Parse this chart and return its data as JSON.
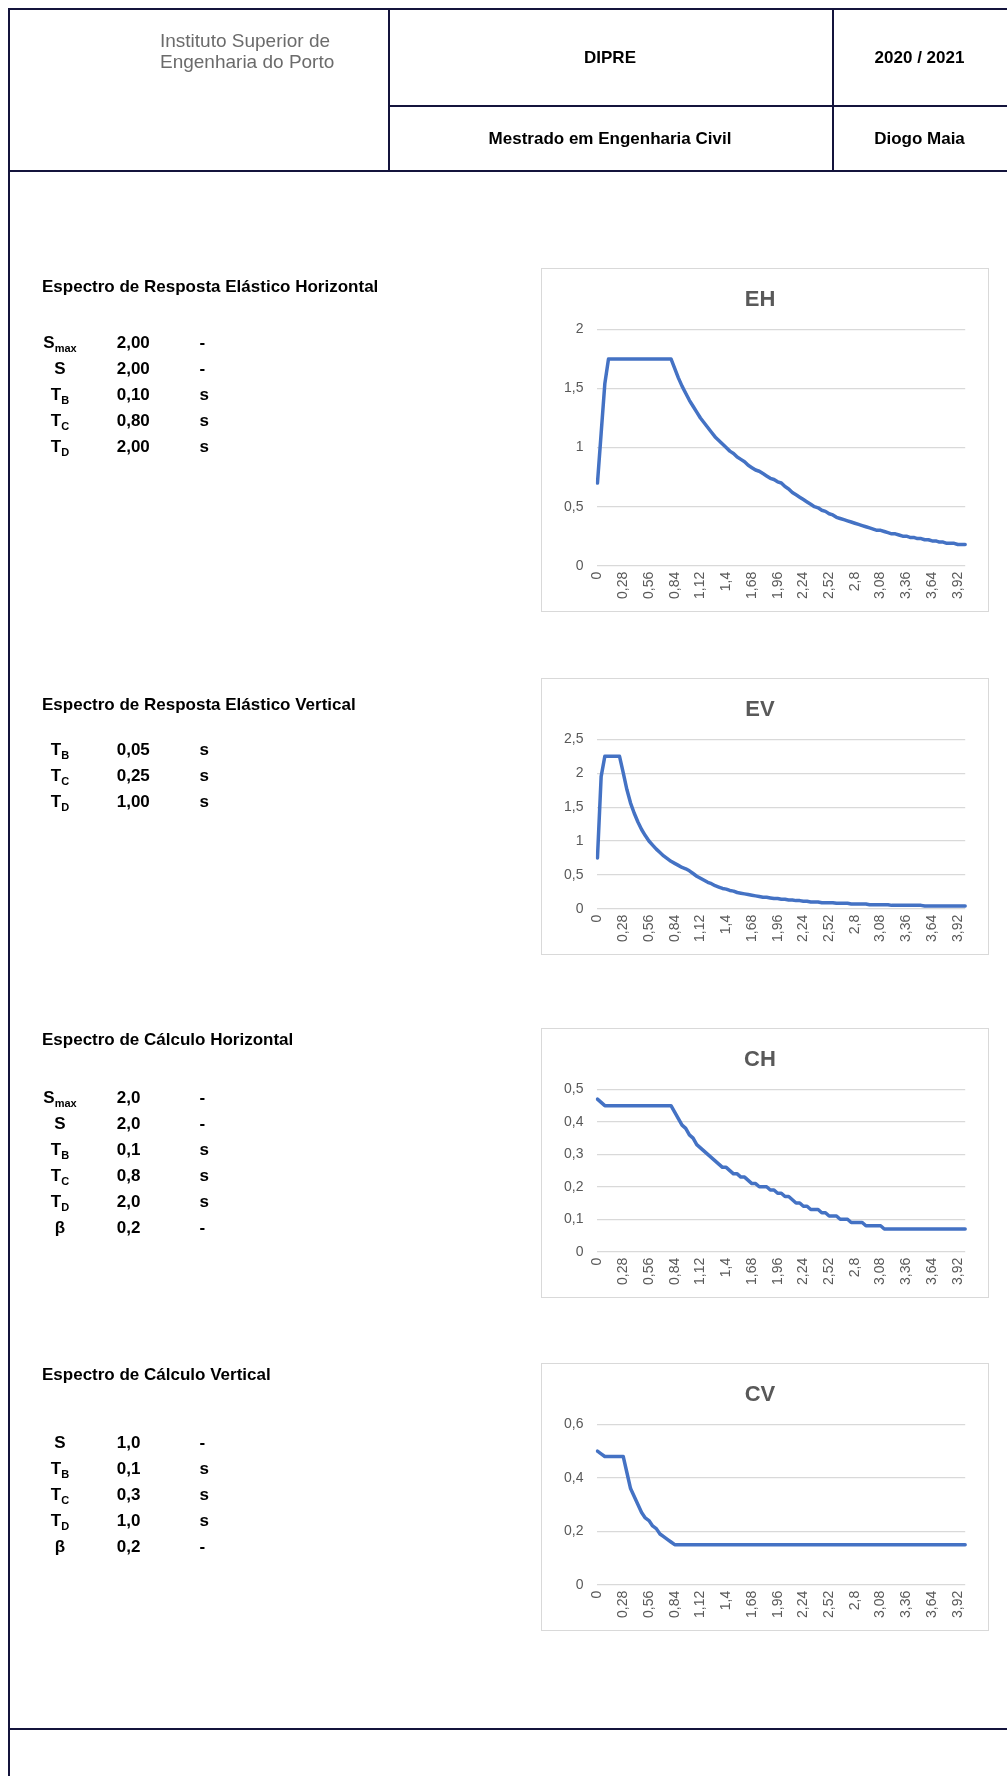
{
  "chart_data": [
    {
      "type": "other",
      "annotations": [
        "Instituto Superior de Engenharia do Porto",
        "DIPRE",
        "2020 / 2021",
        "Mestrado em Engenharia Civil",
        "Diogo Maia"
      ]
    },
    {
      "type": "other",
      "title": "Espectro de Resposta Elástico Horizontal",
      "annotations": [
        "S$_{max}$ 2,00 -",
        "S 2,00 -",
        "T$_{B}$ 0,10 s",
        "T$_{C}$ 0,80 s",
        "T$_{D}$ 2,00 s"
      ]
    },
    {
      "type": "line",
      "title": "EH",
      "categories": [
        "0",
        null,
        null,
        null,
        null,
        null,
        null,
        "0,28",
        null,
        null,
        null,
        null,
        null,
        null,
        "0,56",
        null,
        null,
        null,
        null,
        null,
        null,
        "0,84",
        null,
        null,
        null,
        null,
        null,
        null,
        "1,12",
        null,
        null,
        null,
        null,
        null,
        null,
        "1,4",
        null,
        null,
        null,
        null,
        null,
        null,
        "1,68",
        null,
        null,
        null,
        null,
        null,
        null,
        "1,96",
        null,
        null,
        null,
        null,
        null,
        null,
        "2,24",
        null,
        null,
        null,
        null,
        null,
        null,
        "2,52",
        null,
        null,
        null,
        null,
        null,
        null,
        "2,8",
        null,
        null,
        null,
        null,
        null,
        null,
        "3,08",
        null,
        null,
        null,
        null,
        null,
        null,
        "3,36",
        null,
        null,
        null,
        null,
        null,
        null,
        "3,64",
        null,
        null,
        null,
        null,
        null,
        null,
        "3,92",
        null,
        null
      ],
      "values": [
        0.7,
        1.12,
        1.54,
        1.75,
        1.75,
        1.75,
        1.75,
        1.75,
        1.75,
        1.75,
        1.75,
        1.75,
        1.75,
        1.75,
        1.75,
        1.75,
        1.75,
        1.75,
        1.75,
        1.75,
        1.75,
        1.67,
        1.59,
        1.52,
        1.46,
        1.4,
        1.35,
        1.3,
        1.25,
        1.21,
        1.17,
        1.13,
        1.09,
        1.06,
        1.03,
        1.0,
        0.97,
        0.95,
        0.92,
        0.9,
        0.88,
        0.85,
        0.83,
        0.81,
        0.8,
        0.78,
        0.76,
        0.74,
        0.73,
        0.71,
        0.7,
        0.67,
        0.65,
        0.62,
        0.6,
        0.58,
        0.56,
        0.54,
        0.52,
        0.5,
        0.49,
        0.47,
        0.46,
        0.44,
        0.43,
        0.41,
        0.4,
        0.39,
        0.38,
        0.37,
        0.36,
        0.35,
        0.34,
        0.33,
        0.32,
        0.31,
        0.3,
        0.3,
        0.29,
        0.28,
        0.27,
        0.27,
        0.26,
        0.25,
        0.25,
        0.24,
        0.24,
        0.23,
        0.23,
        0.22,
        0.22,
        0.21,
        0.21,
        0.2,
        0.2,
        0.19,
        0.19,
        0.19,
        0.18,
        0.18,
        0.18
      ],
      "color": "#4472c4",
      "ylim": [
        0,
        2
      ],
      "yticks": [
        0,
        {
          "value": 0.5,
          "label": "0,5"
        },
        1,
        {
          "value": 1.5,
          "label": "1,5"
        },
        2
      ],
      "grid": "y",
      "marker": "none"
    },
    {
      "type": "other",
      "title": "Espectro de Resposta Elástico Vertical",
      "annotations": [
        "T$_{B}$ 0,05 s",
        "T$_{C}$ 0,25 s",
        "T$_{D}$ 1,00 s"
      ]
    },
    {
      "type": "line",
      "title": "EV",
      "categories": [
        "0",
        null,
        null,
        null,
        null,
        null,
        null,
        "0,28",
        null,
        null,
        null,
        null,
        null,
        null,
        "0,56",
        null,
        null,
        null,
        null,
        null,
        null,
        "0,84",
        null,
        null,
        null,
        null,
        null,
        null,
        "1,12",
        null,
        null,
        null,
        null,
        null,
        null,
        "1,4",
        null,
        null,
        null,
        null,
        null,
        null,
        "1,68",
        null,
        null,
        null,
        null,
        null,
        null,
        "1,96",
        null,
        null,
        null,
        null,
        null,
        null,
        "2,24",
        null,
        null,
        null,
        null,
        null,
        null,
        "2,52",
        null,
        null,
        null,
        null,
        null,
        null,
        "2,8",
        null,
        null,
        null,
        null,
        null,
        null,
        "3,08",
        null,
        null,
        null,
        null,
        null,
        null,
        "3,36",
        null,
        null,
        null,
        null,
        null,
        null,
        "3,64",
        null,
        null,
        null,
        null,
        null,
        null,
        "3,92",
        null,
        null
      ],
      "values": [
        0.75,
        1.95,
        2.25,
        2.25,
        2.25,
        2.25,
        2.25,
        2.01,
        1.76,
        1.56,
        1.41,
        1.28,
        1.17,
        1.08,
        1.0,
        0.94,
        0.88,
        0.83,
        0.78,
        0.74,
        0.7,
        0.67,
        0.64,
        0.61,
        0.59,
        0.56,
        0.52,
        0.48,
        0.45,
        0.42,
        0.39,
        0.37,
        0.34,
        0.32,
        0.3,
        0.29,
        0.27,
        0.26,
        0.24,
        0.23,
        0.22,
        0.21,
        0.2,
        0.19,
        0.18,
        0.17,
        0.17,
        0.16,
        0.15,
        0.15,
        0.14,
        0.14,
        0.13,
        0.13,
        0.12,
        0.12,
        0.11,
        0.11,
        0.1,
        0.1,
        0.1,
        0.09,
        0.09,
        0.09,
        0.09,
        0.08,
        0.08,
        0.08,
        0.08,
        0.07,
        0.07,
        0.07,
        0.07,
        0.07,
        0.06,
        0.06,
        0.06,
        0.06,
        0.06,
        0.06,
        0.05,
        0.05,
        0.05,
        0.05,
        0.05,
        0.05,
        0.05,
        0.05,
        0.05,
        0.04,
        0.04,
        0.04,
        0.04,
        0.04,
        0.04,
        0.04,
        0.04,
        0.04,
        0.04,
        0.04,
        0.04
      ],
      "color": "#4472c4",
      "ylim": [
        0,
        2.5
      ],
      "yticks": [
        0,
        {
          "value": 0.5,
          "label": "0,5"
        },
        1,
        {
          "value": 1.5,
          "label": "1,5"
        },
        2,
        {
          "value": 2.5,
          "label": "2,5"
        }
      ],
      "grid": "y",
      "marker": "none"
    },
    {
      "type": "other",
      "title": "Espectro de Cálculo Horizontal",
      "annotations": [
        "S$_{max}$ 2,0 -",
        "S 2,0 -",
        "T$_{B}$ 0,1 s",
        "T$_{C}$ 0,8 s",
        "T$_{D}$ 2,0 s",
        "β 0,2 -"
      ]
    },
    {
      "type": "line",
      "title": "CH",
      "categories": [
        "0",
        null,
        null,
        null,
        null,
        null,
        null,
        "0,28",
        null,
        null,
        null,
        null,
        null,
        null,
        "0,56",
        null,
        null,
        null,
        null,
        null,
        null,
        "0,84",
        null,
        null,
        null,
        null,
        null,
        null,
        "1,12",
        null,
        null,
        null,
        null,
        null,
        null,
        "1,4",
        null,
        null,
        null,
        null,
        null,
        null,
        "1,68",
        null,
        null,
        null,
        null,
        null,
        null,
        "1,96",
        null,
        null,
        null,
        null,
        null,
        null,
        "2,24",
        null,
        null,
        null,
        null,
        null,
        null,
        "2,52",
        null,
        null,
        null,
        null,
        null,
        null,
        "2,8",
        null,
        null,
        null,
        null,
        null,
        null,
        "3,08",
        null,
        null,
        null,
        null,
        null,
        null,
        "3,36",
        null,
        null,
        null,
        null,
        null,
        null,
        "3,64",
        null,
        null,
        null,
        null,
        null,
        null,
        "3,92",
        null,
        null
      ],
      "values": [
        0.47,
        0.46,
        0.45,
        0.45,
        0.45,
        0.45,
        0.45,
        0.45,
        0.45,
        0.45,
        0.45,
        0.45,
        0.45,
        0.45,
        0.45,
        0.45,
        0.45,
        0.45,
        0.45,
        0.45,
        0.45,
        0.43,
        0.41,
        0.39,
        0.38,
        0.36,
        0.35,
        0.33,
        0.32,
        0.31,
        0.3,
        0.29,
        0.28,
        0.27,
        0.26,
        0.26,
        0.25,
        0.24,
        0.24,
        0.23,
        0.23,
        0.22,
        0.21,
        0.21,
        0.2,
        0.2,
        0.2,
        0.19,
        0.19,
        0.18,
        0.18,
        0.17,
        0.17,
        0.16,
        0.15,
        0.15,
        0.14,
        0.14,
        0.13,
        0.13,
        0.13,
        0.12,
        0.12,
        0.11,
        0.11,
        0.11,
        0.1,
        0.1,
        0.1,
        0.09,
        0.09,
        0.09,
        0.09,
        0.08,
        0.08,
        0.08,
        0.08,
        0.08,
        0.07,
        0.07,
        0.07,
        0.07,
        0.07,
        0.07,
        0.07,
        0.07,
        0.07,
        0.07,
        0.07,
        0.07,
        0.07,
        0.07,
        0.07,
        0.07,
        0.07,
        0.07,
        0.07,
        0.07,
        0.07,
        0.07,
        0.07
      ],
      "color": "#4472c4",
      "ylim": [
        0,
        0.5
      ],
      "yticks": [
        0,
        {
          "value": 0.1,
          "label": "0,1"
        },
        {
          "value": 0.2,
          "label": "0,2"
        },
        {
          "value": 0.3,
          "label": "0,3"
        },
        {
          "value": 0.4,
          "label": "0,4"
        },
        {
          "value": 0.5,
          "label": "0,5"
        }
      ],
      "grid": "y",
      "marker": "none"
    },
    {
      "type": "other",
      "title": "Espectro de Cálculo Vertical",
      "annotations": [
        "S 1,0 -",
        "T$_{B}$ 0,1 s",
        "T$_{C}$ 0,3 s",
        "T$_{D}$ 1,0 s",
        "β 0,2 -"
      ]
    },
    {
      "type": "line",
      "title": "CV",
      "categories": [
        "0",
        null,
        null,
        null,
        null,
        null,
        null,
        "0,28",
        null,
        null,
        null,
        null,
        null,
        null,
        "0,56",
        null,
        null,
        null,
        null,
        null,
        null,
        "0,84",
        null,
        null,
        null,
        null,
        null,
        null,
        "1,12",
        null,
        null,
        null,
        null,
        null,
        null,
        "1,4",
        null,
        null,
        null,
        null,
        null,
        null,
        "1,68",
        null,
        null,
        null,
        null,
        null,
        null,
        "1,96",
        null,
        null,
        null,
        null,
        null,
        null,
        "2,24",
        null,
        null,
        null,
        null,
        null,
        null,
        "2,52",
        null,
        null,
        null,
        null,
        null,
        null,
        "2,8",
        null,
        null,
        null,
        null,
        null,
        null,
        "3,08",
        null,
        null,
        null,
        null,
        null,
        null,
        "3,36",
        null,
        null,
        null,
        null,
        null,
        null,
        "3,64",
        null,
        null,
        null,
        null,
        null,
        null,
        "3,92",
        null,
        null
      ],
      "values": [
        0.5,
        0.49,
        0.48,
        0.48,
        0.48,
        0.48,
        0.48,
        0.48,
        0.42,
        0.36,
        0.33,
        0.3,
        0.27,
        0.25,
        0.24,
        0.22,
        0.21,
        0.19,
        0.18,
        0.17,
        0.16,
        0.15,
        0.15,
        0.15,
        0.15,
        0.15,
        0.15,
        0.15,
        0.15,
        0.15,
        0.15,
        0.15,
        0.15,
        0.15,
        0.15,
        0.15,
        0.15,
        0.15,
        0.15,
        0.15,
        0.15,
        0.15,
        0.15,
        0.15,
        0.15,
        0.15,
        0.15,
        0.15,
        0.15,
        0.15,
        0.15,
        0.15,
        0.15,
        0.15,
        0.15,
        0.15,
        0.15,
        0.15,
        0.15,
        0.15,
        0.15,
        0.15,
        0.15,
        0.15,
        0.15,
        0.15,
        0.15,
        0.15,
        0.15,
        0.15,
        0.15,
        0.15,
        0.15,
        0.15,
        0.15,
        0.15,
        0.15,
        0.15,
        0.15,
        0.15,
        0.15,
        0.15,
        0.15,
        0.15,
        0.15,
        0.15,
        0.15,
        0.15,
        0.15,
        0.15,
        0.15,
        0.15,
        0.15,
        0.15,
        0.15,
        0.15,
        0.15,
        0.15,
        0.15,
        0.15,
        0.15
      ],
      "color": "#4472c4",
      "ylim": [
        0,
        0.6
      ],
      "yticks": [
        0,
        {
          "value": 0.2,
          "label": "0,2"
        },
        {
          "value": 0.4,
          "label": "0,4"
        },
        {
          "value": 0.6,
          "label": "0,6"
        }
      ],
      "grid": "y",
      "marker": "none"
    }
  ]
}
